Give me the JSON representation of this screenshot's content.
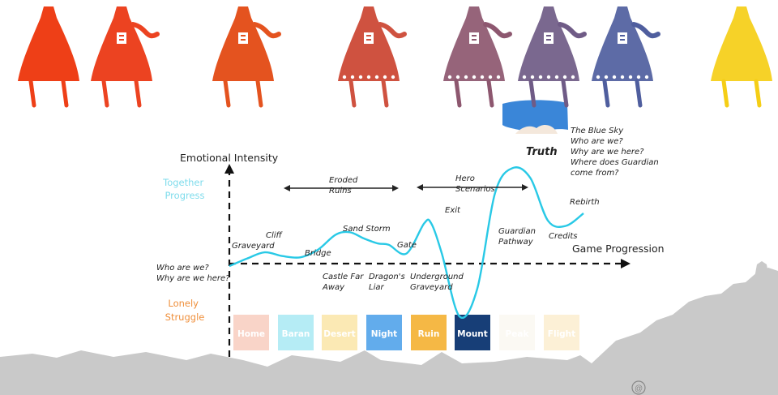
{
  "chart_data": {
    "type": "line",
    "y_label": "Emotional Intensity",
    "x_label": "Game Progression",
    "y_high_label": [
      "Together",
      "Progress"
    ],
    "y_low_label": [
      "Lonely",
      "Struggle"
    ],
    "series": [
      {
        "color": "#29c9e6",
        "x": [
          0,
          5,
          10,
          15,
          20,
          25,
          30,
          34,
          38,
          42,
          45,
          50,
          55,
          57,
          60,
          65,
          70,
          75,
          80,
          85,
          90,
          95,
          100
        ],
        "y": [
          -0.1,
          0.2,
          0.45,
          0.3,
          0.25,
          0.55,
          1.15,
          1.25,
          1.0,
          0.8,
          0.75,
          0.4,
          1.6,
          1.6,
          0.4,
          -2.1,
          -1.0,
          2.8,
          3.8,
          3.4,
          1.7,
          1.5,
          2.0
        ]
      }
    ],
    "annotations": [
      {
        "lines": [
          "Who are we?",
          "Why are we here?"
        ]
      },
      {
        "lines": [
          "Graveyard"
        ]
      },
      {
        "lines": [
          "Cliff"
        ]
      },
      {
        "lines": [
          "Bridge"
        ]
      },
      {
        "lines": [
          "Castle Far",
          "Away"
        ]
      },
      {
        "lines": [
          "Sand Storm"
        ]
      },
      {
        "lines": [
          "Dragon's",
          "Liar"
        ]
      },
      {
        "lines": [
          "Gate"
        ]
      },
      {
        "lines": [
          "Underground",
          "Graveyard"
        ]
      },
      {
        "lines": [
          "Exit"
        ]
      },
      {
        "lines": [
          "Guardian",
          "Pathway"
        ]
      },
      {
        "lines": [
          "Credits"
        ]
      },
      {
        "lines": [
          "Rebirth"
        ]
      },
      {
        "lines": [
          "The Blue Sky",
          "Who are we?",
          "Why are we here?",
          "Where does Guardian",
          "come from?"
        ]
      },
      {
        "lines": [
          "Eroded",
          "Ruins"
        ]
      },
      {
        "lines": [
          "Hero",
          "Scenarios"
        ]
      }
    ],
    "peak_label": "Truth",
    "stages": [
      {
        "label": "Home",
        "color": "#f9d4c8"
      },
      {
        "label": "Baran",
        "color": "#b5ecf5"
      },
      {
        "label": "Desert",
        "color": "#fbe9b4"
      },
      {
        "label": "Night",
        "color": "#62acec"
      },
      {
        "label": "Ruin",
        "color": "#f5b845"
      },
      {
        "label": "Mount",
        "color": "#173e77"
      },
      {
        "label": "Peak",
        "color": "#fbf9f3"
      },
      {
        "label": "Flight",
        "color": "#fcf0d6"
      }
    ]
  },
  "colors": {
    "robes": [
      "#ee3f17",
      "#ec4321",
      "#e4531f",
      "#cf5240",
      "#8d576f",
      "#6f5b86",
      "#4f5e9e",
      "#f5ce16"
    ],
    "sky_band": "#3a86d8",
    "skyline": "#c9c9c9"
  },
  "watermark_glyph": "@"
}
